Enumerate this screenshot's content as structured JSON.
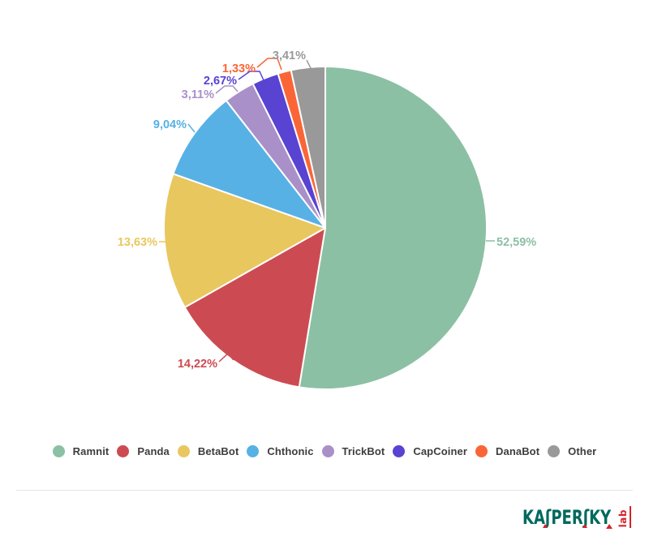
{
  "chart_data": {
    "type": "pie",
    "title": "",
    "unit": "%",
    "decimal_separator": ",",
    "direction": "clockwise",
    "start_angle_deg": 0,
    "grid": false,
    "legend_position": "bottom",
    "series": [
      {
        "name": "Ramnit",
        "value": 52.59,
        "label": "52,59%",
        "color": "#8CC0A5"
      },
      {
        "name": "Panda",
        "value": 14.22,
        "label": "14,22%",
        "color": "#CC4B52"
      },
      {
        "name": "BetaBot",
        "value": 13.63,
        "label": "13,63%",
        "color": "#E9C75F"
      },
      {
        "name": "Chthonic",
        "value": 9.04,
        "label": "9,04%",
        "color": "#57B1E5"
      },
      {
        "name": "TrickBot",
        "value": 3.11,
        "label": "3,11%",
        "color": "#AA90C8"
      },
      {
        "name": "CapCoiner",
        "value": 2.67,
        "label": "2,67%",
        "color": "#5843D2"
      },
      {
        "name": "DanaBot",
        "value": 1.33,
        "label": "1,33%",
        "color": "#FA6537"
      },
      {
        "name": "Other",
        "value": 3.41,
        "label": "3,41%",
        "color": "#999999"
      }
    ]
  },
  "footer": {
    "brand": "KASPERSKY",
    "brand_sub": "lab",
    "brand_color": "#00695C",
    "brand_accent": "#D6232A"
  }
}
